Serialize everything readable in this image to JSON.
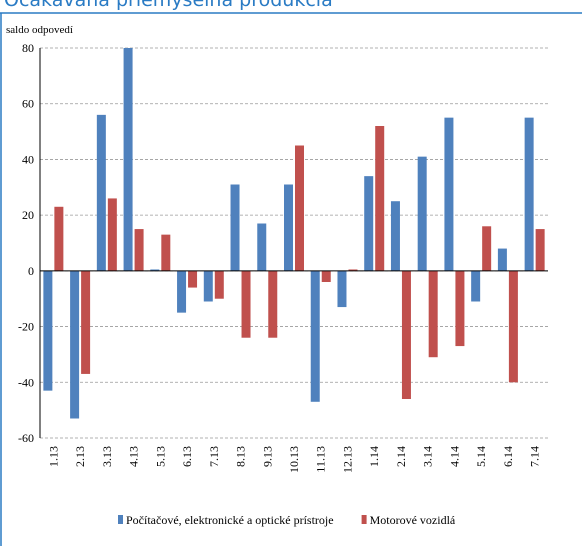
{
  "chart_data": {
    "type": "bar",
    "title": "Očakávaná priemyselná produkcia",
    "y_label": "saldo odpovedí",
    "categories": [
      "1.13",
      "2.13",
      "3.13",
      "4.13",
      "5.13",
      "6.13",
      "7.13",
      "8.13",
      "9.13",
      "10.13",
      "11.13",
      "12.13",
      "1.14",
      "2.14",
      "3.14",
      "4.14",
      "5.14",
      "6.14",
      "7.14"
    ],
    "series": [
      {
        "name": "Počítačové, elektronické a optické prístroje",
        "color": "#4f81bd",
        "values": [
          -43,
          -53,
          56,
          80,
          0.5,
          -15,
          -11,
          31,
          17,
          31,
          -47,
          -13,
          34,
          25,
          41,
          55,
          -11,
          8,
          55
        ]
      },
      {
        "name": "Motorové vozidlá",
        "color": "#c0504d",
        "values": [
          23,
          -37,
          26,
          15,
          13,
          -6,
          -10,
          -24,
          -24,
          45,
          -4,
          0.5,
          52,
          -46,
          -31,
          -27,
          16,
          -40,
          15
        ]
      }
    ],
    "ylim": [
      -60,
      80
    ],
    "yticks": [
      -60,
      -40,
      -20,
      0,
      20,
      40,
      60,
      80
    ],
    "grid": true,
    "legend": "bottom"
  }
}
